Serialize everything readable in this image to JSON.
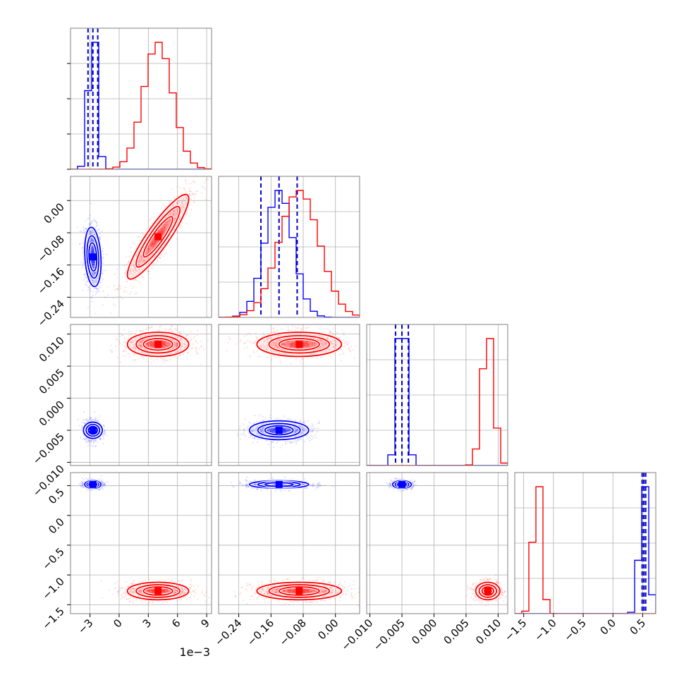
{
  "colors": {
    "posterior_a": "#0000ff",
    "posterior_b": "#ff0000",
    "quantile_line": "#0000cc",
    "grid": "#b0b0b0",
    "frame": "#808080"
  },
  "axis_exponent_label": "1e−3",
  "chart_data": {
    "type": "corner",
    "description_of_layout": "triangular",
    "parameters": [
      {
        "id": "p0",
        "range": [
          -5.0,
          9.5
        ],
        "ticks": [
          -3,
          0,
          3,
          6,
          9
        ],
        "tick_labels": [
          "−3",
          "0",
          "3",
          "6",
          "9"
        ],
        "scale_note": "1e−3"
      },
      {
        "id": "p1",
        "range": [
          -0.29,
          0.06
        ],
        "ticks": [
          -0.24,
          -0.16,
          -0.08,
          0.0
        ],
        "tick_labels": [
          "−0.24",
          "−0.16",
          "−0.08",
          "0.00"
        ]
      },
      {
        "id": "p2",
        "range": [
          -0.0105,
          0.0115
        ],
        "ticks": [
          -0.01,
          -0.005,
          0.0,
          0.005,
          0.01
        ],
        "tick_labels": [
          "−0.010",
          "−0.005",
          "0.000",
          "0.005",
          "0.010"
        ]
      },
      {
        "id": "p3",
        "range": [
          -1.65,
          0.72
        ],
        "ticks": [
          -1.5,
          -1.0,
          -0.5,
          0.0,
          0.5
        ],
        "tick_labels": [
          "−1.5",
          "−1.0",
          "−0.5",
          "0.0",
          "0.5"
        ]
      }
    ],
    "series": [
      {
        "color": "#0000ff",
        "mean": [
          -2.7,
          -0.14,
          -0.005,
          0.52
        ],
        "std": [
          0.4,
          0.035,
          0.0007,
          0.03
        ],
        "corr_01": -0.2,
        "corr_12": 0.0,
        "corr_02": 0.0,
        "quantiles": [
          [
            -3.2,
            -2.7,
            -2.2
          ],
          [
            -0.185,
            -0.14,
            -0.095
          ],
          [
            -0.006,
            -0.005,
            -0.004
          ],
          [
            0.49,
            0.52,
            0.55
          ]
        ]
      },
      {
        "color": "#ff0000",
        "mean": [
          4.0,
          -0.09,
          0.0084,
          -1.27
        ],
        "std": [
          1.5,
          0.05,
          0.0009,
          0.07
        ],
        "corr_01": 0.9,
        "corr_12": 0.0,
        "corr_02": 0.0,
        "quantiles": null
      }
    ]
  }
}
